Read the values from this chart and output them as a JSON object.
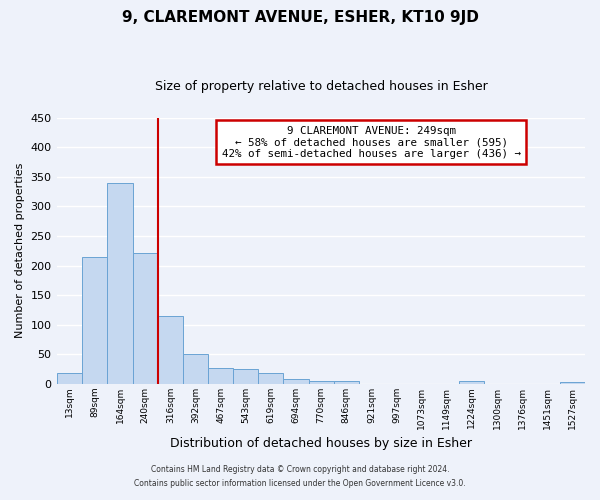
{
  "title": "9, CLAREMONT AVENUE, ESHER, KT10 9JD",
  "subtitle": "Size of property relative to detached houses in Esher",
  "xlabel": "Distribution of detached houses by size in Esher",
  "ylabel": "Number of detached properties",
  "bar_color": "#c5d8f0",
  "bar_edge_color": "#6aa3d4",
  "background_color": "#eef2fa",
  "grid_color": "#ffffff",
  "bins": [
    "13sqm",
    "89sqm",
    "164sqm",
    "240sqm",
    "316sqm",
    "392sqm",
    "467sqm",
    "543sqm",
    "619sqm",
    "694sqm",
    "770sqm",
    "846sqm",
    "921sqm",
    "997sqm",
    "1073sqm",
    "1149sqm",
    "1224sqm",
    "1300sqm",
    "1376sqm",
    "1451sqm",
    "1527sqm"
  ],
  "values": [
    18,
    215,
    340,
    222,
    115,
    50,
    26,
    25,
    19,
    8,
    5,
    4,
    0,
    0,
    0,
    0,
    4,
    0,
    0,
    0,
    3
  ],
  "property_bin_index": 3,
  "annotation_title": "9 CLAREMONT AVENUE: 249sqm",
  "annotation_line1": "← 58% of detached houses are smaller (595)",
  "annotation_line2": "42% of semi-detached houses are larger (436) →",
  "vline_color": "#cc0000",
  "annotation_box_edge_color": "#cc0000",
  "ylim": [
    0,
    450
  ],
  "yticks": [
    0,
    50,
    100,
    150,
    200,
    250,
    300,
    350,
    400,
    450
  ],
  "footer_line1": "Contains HM Land Registry data © Crown copyright and database right 2024.",
  "footer_line2": "Contains public sector information licensed under the Open Government Licence v3.0."
}
